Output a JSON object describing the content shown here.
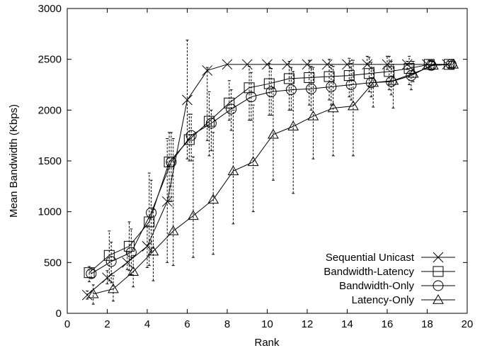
{
  "chart_data": {
    "type": "line",
    "title": "",
    "xlabel": "Rank",
    "ylabel": "Mean Bandwidth (Kbps)",
    "xlim": [
      0,
      20
    ],
    "ylim": [
      0,
      3000
    ],
    "xticks": [
      0,
      2,
      4,
      6,
      8,
      10,
      12,
      14,
      16,
      18,
      20
    ],
    "yticks": [
      0,
      500,
      1000,
      1500,
      2000,
      2500,
      3000
    ],
    "grid": false,
    "legend_position": "bottom-right",
    "series": [
      {
        "name": "Sequential Unicast",
        "marker": "x",
        "x": [
          1,
          2,
          3,
          4,
          5,
          6,
          7,
          8,
          9,
          10,
          11,
          12,
          13,
          14,
          15,
          16,
          17,
          18,
          19
        ],
        "y": [
          180,
          350,
          500,
          660,
          1100,
          2100,
          2390,
          2450,
          2450,
          2450,
          2450,
          2450,
          2450,
          2450,
          2450,
          2450,
          2450,
          2450,
          2450
        ],
        "err_low": [
          140,
          290,
          430,
          450,
          500,
          1520,
          1700,
          2450,
          2450,
          2450,
          2450,
          2450,
          2450,
          2450,
          2450,
          2400,
          2400,
          2450,
          2450
        ],
        "err_high": [
          220,
          420,
          600,
          860,
          1720,
          2690,
          2420,
          2450,
          2450,
          2450,
          2450,
          2450,
          2450,
          2450,
          2530,
          2530,
          2480,
          2450,
          2450
        ]
      },
      {
        "name": "Bandwidth-Latency",
        "marker": "square",
        "x": [
          1.1,
          2.1,
          3.1,
          4.1,
          5.1,
          6.1,
          7.1,
          8.1,
          9.1,
          10.1,
          11.1,
          12.1,
          13.1,
          14.1,
          15.1,
          16.1,
          17.1,
          18.1,
          19.1
        ],
        "y": [
          400,
          570,
          660,
          900,
          1490,
          1710,
          1890,
          2070,
          2220,
          2260,
          2310,
          2320,
          2330,
          2340,
          2360,
          2380,
          2410,
          2450,
          2450
        ],
        "err_low": [
          310,
          320,
          420,
          470,
          1100,
          1500,
          1550,
          1900,
          1900,
          1950,
          2000,
          2050,
          2100,
          2130,
          2180,
          2200,
          2250,
          2400,
          2420
        ],
        "err_high": [
          460,
          810,
          900,
          1380,
          1780,
          1960,
          2180,
          2290,
          2430,
          2460,
          2480,
          2490,
          2500,
          2510,
          2520,
          2530,
          2530,
          2490,
          2480
        ]
      },
      {
        "name": "Bandwidth-Only",
        "marker": "circle",
        "x": [
          1.2,
          2.2,
          3.2,
          4.2,
          5.2,
          6.2,
          7.2,
          8.2,
          9.2,
          10.2,
          11.2,
          12.2,
          13.2,
          14.2,
          15.2,
          16.2,
          17.2,
          18.2,
          19.2
        ],
        "y": [
          390,
          510,
          600,
          990,
          1490,
          1750,
          1870,
          2010,
          2130,
          2180,
          2200,
          2210,
          2230,
          2250,
          2270,
          2280,
          2340,
          2440,
          2450
        ],
        "err_low": [
          350,
          300,
          380,
          600,
          1100,
          1500,
          1600,
          1800,
          1900,
          1950,
          2000,
          2000,
          2050,
          2100,
          2130,
          2150,
          2200,
          2400,
          2420
        ],
        "err_high": [
          440,
          700,
          830,
          1310,
          1780,
          1960,
          2000,
          2200,
          2370,
          2410,
          2420,
          2430,
          2440,
          2460,
          2470,
          2480,
          2480,
          2480,
          2480
        ]
      },
      {
        "name": "Latency-Only",
        "marker": "triangle",
        "x": [
          1.3,
          2.3,
          3.3,
          4.3,
          5.3,
          6.3,
          7.3,
          8.3,
          9.3,
          10.3,
          11.3,
          12.3,
          13.3,
          14.3,
          15.3,
          16.3,
          17.3,
          18.3,
          19.3
        ],
        "y": [
          190,
          240,
          410,
          610,
          810,
          960,
          1120,
          1400,
          1490,
          1760,
          1840,
          1940,
          2020,
          2040,
          2270,
          2290,
          2360,
          2440,
          2450
        ],
        "err_low": [
          90,
          120,
          260,
          320,
          470,
          550,
          580,
          880,
          1000,
          1310,
          1180,
          1520,
          1550,
          1550,
          2030,
          2020,
          2280,
          2400,
          2420
        ],
        "err_high": [
          280,
          370,
          570,
          1020,
          1720,
          1540,
          1780,
          2000,
          2050,
          2220,
          2380,
          2420,
          2430,
          2490,
          2420,
          2450,
          2480,
          2480,
          2480
        ]
      }
    ]
  }
}
